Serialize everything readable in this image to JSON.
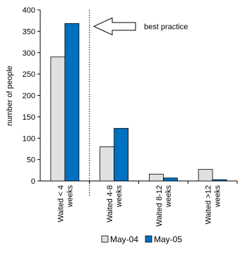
{
  "chart_data": {
    "type": "bar",
    "categories": [
      [
        "Waited < 4",
        "weeks"
      ],
      [
        "Waited 4-8",
        "weeks"
      ],
      [
        "Waited 8-12",
        "weeks"
      ],
      [
        "Waited >12",
        "weeks"
      ]
    ],
    "series": [
      {
        "name": "May-04",
        "values": [
          290,
          80,
          16,
          27
        ],
        "color": "#e0e0e0"
      },
      {
        "name": "May-05",
        "values": [
          368,
          123,
          7,
          3
        ],
        "color": "#0070c0"
      }
    ],
    "ylabel": "number of people",
    "ylim": [
      0,
      400
    ],
    "yticks": [
      0,
      50,
      100,
      150,
      200,
      250,
      300,
      350,
      400
    ],
    "grid": false,
    "legend": "bottom",
    "annotation": {
      "text": "best practice",
      "type": "block-arrow",
      "points_to": "Waited < 4 weeks / May-05"
    },
    "separator": {
      "type": "dotted-vertical-line",
      "between": [
        "Waited < 4 weeks",
        "Waited 4-8 weeks"
      ]
    }
  }
}
